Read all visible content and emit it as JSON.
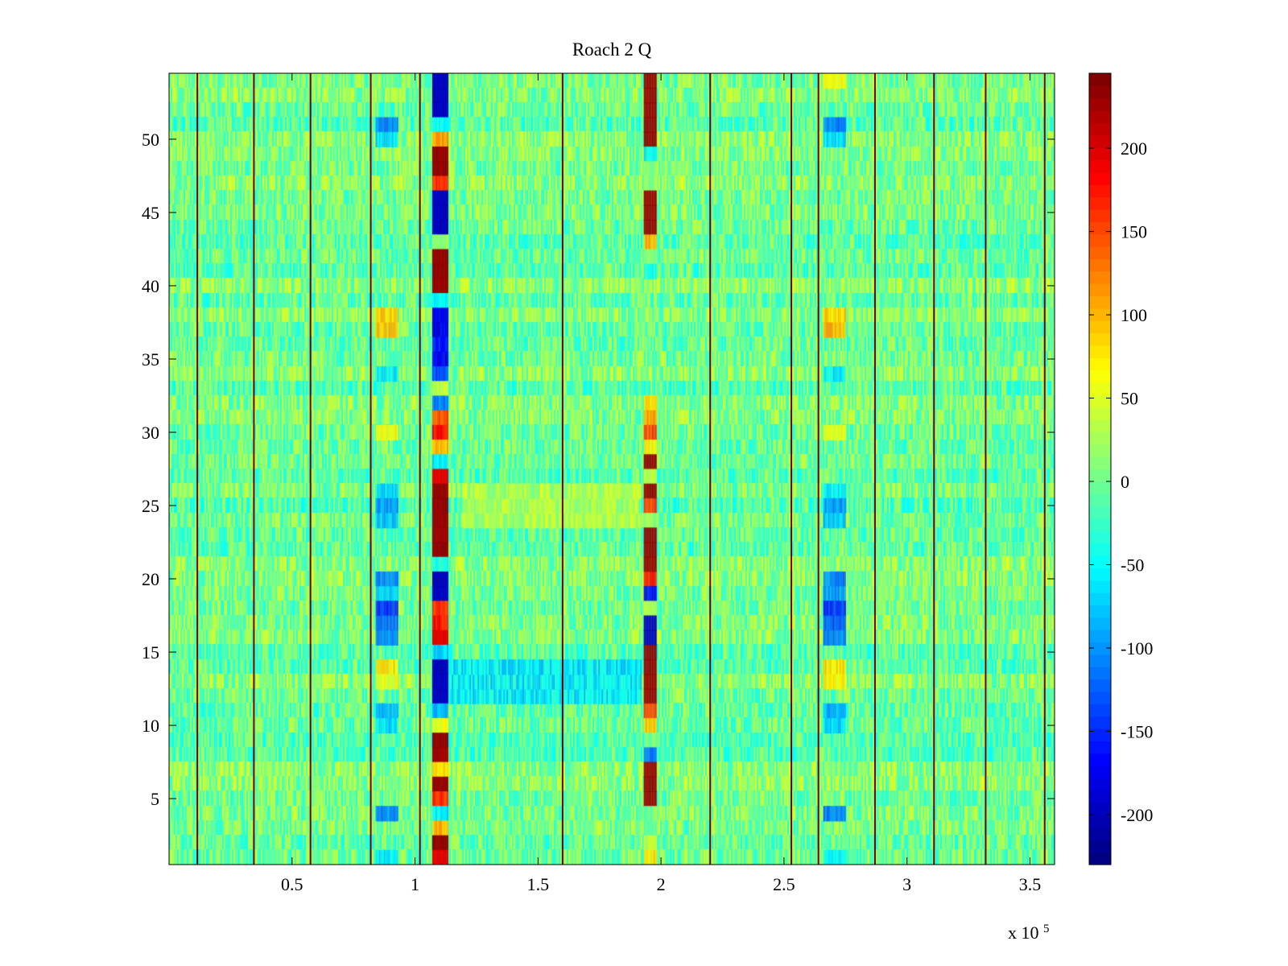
{
  "chart_data": {
    "type": "heatmap",
    "title": "Roach 2 Q",
    "xlabel": "",
    "ylabel": "",
    "x_range": [
      0,
      360000
    ],
    "y_range": [
      0.5,
      54.5
    ],
    "x_ticks": [
      50000,
      100000,
      150000,
      200000,
      250000,
      300000,
      350000
    ],
    "x_tick_labels": [
      "0.5",
      "1",
      "1.5",
      "2",
      "2.5",
      "3",
      "3.5"
    ],
    "x_exponent_label": {
      "base": "x 10",
      "power": "5"
    },
    "y_ticks": [
      5,
      10,
      15,
      20,
      25,
      30,
      35,
      40,
      45,
      50
    ],
    "y_tick_labels": [
      "5",
      "10",
      "15",
      "20",
      "25",
      "30",
      "35",
      "40",
      "45",
      "50"
    ],
    "rows": 54,
    "colormap": "jet",
    "background_value": 0,
    "color_range": [
      -230,
      245
    ],
    "colorbar": {
      "ticks": [
        -200,
        -150,
        -100,
        -50,
        0,
        50,
        100,
        150,
        200
      ],
      "tick_labels": [
        "-200",
        "-150",
        "-100",
        "-50",
        "0",
        "50",
        "100",
        "150",
        "200"
      ]
    },
    "vertical_lines_x": [
      11500,
      34500,
      57500,
      82000,
      102000,
      160000,
      220000,
      253000,
      264000,
      287000,
      311000,
      332000,
      356000
    ],
    "column_groups": [
      {
        "x_range": [
          84000,
          93000
        ],
        "rows": [
          {
            "row": 51,
            "value": -110
          },
          {
            "row": 50,
            "value": -70
          },
          {
            "row": 38,
            "value": 90
          },
          {
            "row": 37,
            "value": 100
          },
          {
            "row": 34,
            "value": -60
          },
          {
            "row": 30,
            "value": 70
          },
          {
            "row": 26,
            "value": -70
          },
          {
            "row": 25,
            "value": -100
          },
          {
            "row": 24,
            "value": -80
          },
          {
            "row": 20,
            "value": -110
          },
          {
            "row": 19,
            "value": -80
          },
          {
            "row": 18,
            "value": -150
          },
          {
            "row": 17,
            "value": -120
          },
          {
            "row": 16,
            "value": -110
          },
          {
            "row": 14,
            "value": 80
          },
          {
            "row": 13,
            "value": 60
          },
          {
            "row": 11,
            "value": -90
          },
          {
            "row": 10,
            "value": -70
          },
          {
            "row": 4,
            "value": -110
          },
          {
            "row": 1,
            "value": -60
          }
        ]
      },
      {
        "x_range": [
          107000,
          113000
        ],
        "rows": [
          {
            "row": 54,
            "value": -200
          },
          {
            "row": 53,
            "value": -200
          },
          {
            "row": 52,
            "value": -200
          },
          {
            "row": 51,
            "value": -50
          },
          {
            "row": 50,
            "value": 110
          },
          {
            "row": 49,
            "value": 235
          },
          {
            "row": 48,
            "value": 235
          },
          {
            "row": 47,
            "value": 160
          },
          {
            "row": 46,
            "value": -200
          },
          {
            "row": 45,
            "value": -200
          },
          {
            "row": 44,
            "value": -200
          },
          {
            "row": 43,
            "value": 20
          },
          {
            "row": 42,
            "value": 235
          },
          {
            "row": 41,
            "value": 235
          },
          {
            "row": 40,
            "value": 235
          },
          {
            "row": 39,
            "value": -60
          },
          {
            "row": 38,
            "value": -170
          },
          {
            "row": 37,
            "value": -180
          },
          {
            "row": 36,
            "value": -160
          },
          {
            "row": 35,
            "value": -170
          },
          {
            "row": 34,
            "value": -130
          },
          {
            "row": 33,
            "value": 40
          },
          {
            "row": 32,
            "value": -110
          },
          {
            "row": 31,
            "value": 150
          },
          {
            "row": 30,
            "value": 180
          },
          {
            "row": 29,
            "value": 100
          },
          {
            "row": 28,
            "value": -60
          },
          {
            "row": 27,
            "value": 200
          },
          {
            "row": 26,
            "value": 235
          },
          {
            "row": 25,
            "value": 235
          },
          {
            "row": 24,
            "value": 235
          },
          {
            "row": 23,
            "value": 230
          },
          {
            "row": 22,
            "value": 235
          },
          {
            "row": 21,
            "value": -40
          },
          {
            "row": 20,
            "value": -200
          },
          {
            "row": 19,
            "value": -200
          },
          {
            "row": 18,
            "value": 160
          },
          {
            "row": 17,
            "value": 180
          },
          {
            "row": 16,
            "value": 200
          },
          {
            "row": 15,
            "value": -70
          },
          {
            "row": 14,
            "value": -200
          },
          {
            "row": 13,
            "value": -200
          },
          {
            "row": 12,
            "value": -200
          },
          {
            "row": 11,
            "value": -80
          },
          {
            "row": 10,
            "value": 60
          },
          {
            "row": 9,
            "value": 235
          },
          {
            "row": 8,
            "value": 230
          },
          {
            "row": 7,
            "value": 80
          },
          {
            "row": 6,
            "value": 235
          },
          {
            "row": 5,
            "value": 160
          },
          {
            "row": 4,
            "value": -60
          },
          {
            "row": 3,
            "value": 100
          },
          {
            "row": 2,
            "value": 235
          },
          {
            "row": 1,
            "value": 200
          }
        ]
      },
      {
        "x_range": [
          193000,
          198000
        ],
        "rows": [
          {
            "row": 54,
            "value": 235
          },
          {
            "row": 53,
            "value": 235
          },
          {
            "row": 52,
            "value": 235
          },
          {
            "row": 51,
            "value": 235
          },
          {
            "row": 50,
            "value": 235
          },
          {
            "row": 49,
            "value": -60
          },
          {
            "row": 48,
            "value": 10
          },
          {
            "row": 47,
            "value": 10
          },
          {
            "row": 46,
            "value": 235
          },
          {
            "row": 45,
            "value": 235
          },
          {
            "row": 44,
            "value": 235
          },
          {
            "row": 43,
            "value": 100
          },
          {
            "row": 42,
            "value": 10
          },
          {
            "row": 41,
            "value": -40
          },
          {
            "row": 32,
            "value": 90
          },
          {
            "row": 31,
            "value": 110
          },
          {
            "row": 30,
            "value": 150
          },
          {
            "row": 29,
            "value": 70
          },
          {
            "row": 28,
            "value": 235
          },
          {
            "row": 27,
            "value": 40
          },
          {
            "row": 26,
            "value": 235
          },
          {
            "row": 25,
            "value": 160
          },
          {
            "row": 24,
            "value": 20
          },
          {
            "row": 23,
            "value": 235
          },
          {
            "row": 22,
            "value": 235
          },
          {
            "row": 21,
            "value": 235
          },
          {
            "row": 20,
            "value": 180
          },
          {
            "row": 19,
            "value": -170
          },
          {
            "row": 18,
            "value": 20
          },
          {
            "row": 17,
            "value": -200
          },
          {
            "row": 16,
            "value": -200
          },
          {
            "row": 15,
            "value": 235
          },
          {
            "row": 14,
            "value": 235
          },
          {
            "row": 13,
            "value": 235
          },
          {
            "row": 12,
            "value": 235
          },
          {
            "row": 11,
            "value": 150
          },
          {
            "row": 10,
            "value": 100
          },
          {
            "row": 9,
            "value": 10
          },
          {
            "row": 8,
            "value": -120
          },
          {
            "row": 7,
            "value": 235
          },
          {
            "row": 6,
            "value": 235
          },
          {
            "row": 5,
            "value": 235
          },
          {
            "row": 4,
            "value": 0
          },
          {
            "row": 3,
            "value": 0
          },
          {
            "row": 2,
            "value": 40
          },
          {
            "row": 1,
            "value": 80
          }
        ]
      },
      {
        "x_range": [
          266000,
          275000
        ],
        "rows": [
          {
            "row": 54,
            "value": 60
          },
          {
            "row": 51,
            "value": -110
          },
          {
            "row": 50,
            "value": -70
          },
          {
            "row": 38,
            "value": 90
          },
          {
            "row": 37,
            "value": 100
          },
          {
            "row": 34,
            "value": -60
          },
          {
            "row": 30,
            "value": 60
          },
          {
            "row": 26,
            "value": -60
          },
          {
            "row": 25,
            "value": -100
          },
          {
            "row": 24,
            "value": -80
          },
          {
            "row": 20,
            "value": -110
          },
          {
            "row": 19,
            "value": -100
          },
          {
            "row": 18,
            "value": -150
          },
          {
            "row": 17,
            "value": -130
          },
          {
            "row": 16,
            "value": -110
          },
          {
            "row": 14,
            "value": 80
          },
          {
            "row": 13,
            "value": 70
          },
          {
            "row": 11,
            "value": -90
          },
          {
            "row": 10,
            "value": -70
          },
          {
            "row": 4,
            "value": -110
          },
          {
            "row": 1,
            "value": -50
          }
        ]
      }
    ],
    "row_bands": [
      {
        "rows": [
          12,
          13,
          14
        ],
        "x_range": [
          113000,
          192000
        ],
        "value": -60
      },
      {
        "rows": [
          24,
          25,
          26
        ],
        "x_range": [
          120000,
          192000
        ],
        "value": 30
      }
    ]
  }
}
